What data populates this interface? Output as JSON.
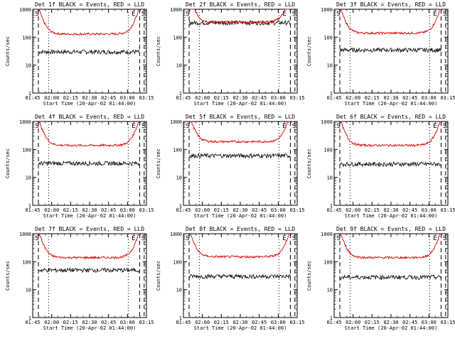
{
  "chart_data": {
    "type": "line",
    "layout": "3x3 grid of panels",
    "y_scale": "log",
    "ylim": [
      1,
      1000
    ],
    "y_ticks": [
      "1",
      "10",
      "100",
      "1000"
    ],
    "ylabel": "Counts/sec",
    "x_ticks": [
      "01:45",
      "02:00",
      "02:15",
      "02:30",
      "02:45",
      "03:00",
      "03:15"
    ],
    "xlabel": "Start Time (20-Apr-02 01:44:00)",
    "series_colors": {
      "events": "#000000",
      "lld": "#dd0000"
    },
    "panels": [
      {
        "title": "Det 1f BLACK = Events, RED = LLD",
        "markers": [
          "S",
          "E",
          "S"
        ],
        "events_level": 30,
        "lld_level": 130
      },
      {
        "title": "Det 2f BLACK = Events, RED = LLD",
        "markers": [
          "S",
          "E",
          "S"
        ],
        "events_level": 330,
        "lld_level": 350
      },
      {
        "title": "Det 3f BLACK = Events, RED = LLD",
        "markers": [
          "S",
          "E",
          "S"
        ],
        "events_level": 35,
        "lld_level": 140
      },
      {
        "title": "Det 4f BLACK = Events, RED = LLD",
        "markers": [
          "S",
          "E",
          "S"
        ],
        "events_level": 32,
        "lld_level": 140
      },
      {
        "title": "Det 5f BLACK = Events, RED = LLD",
        "markers": [
          "S",
          "E",
          "S"
        ],
        "events_level": 60,
        "lld_level": 190
      },
      {
        "title": "Det 6f BLACK = Events, RED = LLD",
        "markers": [
          "S",
          "E",
          "S"
        ],
        "events_level": 30,
        "lld_level": 140
      },
      {
        "title": "Det 7f BLACK = Events, RED = LLD",
        "markers": [
          "S",
          "E",
          "S"
        ],
        "events_level": 50,
        "lld_level": 140
      },
      {
        "title": "Det 8f BLACK = Events, RED = LLD",
        "markers": [
          "S",
          "E",
          "S"
        ],
        "events_level": 30,
        "lld_level": 150
      },
      {
        "title": "Det 9f BLACK = Events, RED = LLD",
        "markers": [
          "S",
          "E",
          "S"
        ],
        "events_level": 28,
        "lld_level": 140
      }
    ]
  }
}
